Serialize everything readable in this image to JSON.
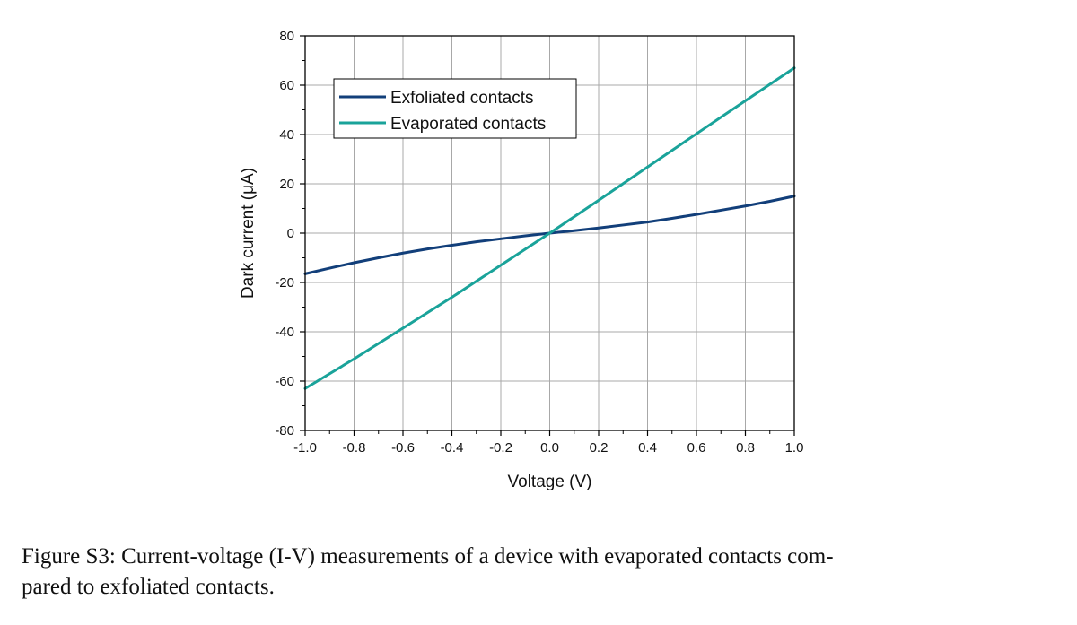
{
  "chart_data": {
    "type": "line",
    "xlabel": "Voltage (V)",
    "ylabel": "Dark current (μA)",
    "xlim": [
      -1.0,
      1.0
    ],
    "ylim": [
      -80,
      80
    ],
    "x_ticks": [
      "-1.0",
      "-0.8",
      "-0.6",
      "-0.4",
      "-0.2",
      "0.0",
      "0.2",
      "0.4",
      "0.6",
      "0.8",
      "1.0"
    ],
    "y_ticks": [
      "-80",
      "-60",
      "-40",
      "-20",
      "0",
      "20",
      "40",
      "60",
      "80"
    ],
    "grid": true,
    "legend_position": "top-left",
    "series": [
      {
        "name": "Exfoliated contacts",
        "color": "#123f7a",
        "x": [
          -1.0,
          -0.9,
          -0.8,
          -0.7,
          -0.6,
          -0.5,
          -0.4,
          -0.3,
          -0.2,
          -0.1,
          0.0,
          0.1,
          0.2,
          0.3,
          0.4,
          0.5,
          0.6,
          0.7,
          0.8,
          0.9,
          1.0
        ],
        "y": [
          -16.5,
          -14.2,
          -12.0,
          -10.0,
          -8.1,
          -6.4,
          -4.9,
          -3.5,
          -2.3,
          -1.1,
          0.0,
          1.0,
          2.1,
          3.3,
          4.5,
          6.0,
          7.6,
          9.3,
          11.0,
          12.9,
          15.0
        ]
      },
      {
        "name": "Evaporated contacts",
        "color": "#1aa39a",
        "x": [
          -1.0,
          -0.8,
          -0.6,
          -0.4,
          -0.2,
          0.0,
          0.2,
          0.4,
          0.6,
          0.8,
          1.0
        ],
        "y": [
          -63.0,
          -51.0,
          -38.5,
          -26.0,
          -13.0,
          0.0,
          13.3,
          26.8,
          40.3,
          53.7,
          67.0
        ]
      }
    ]
  },
  "caption": {
    "line1": "Figure S3: Current-voltage (I-V) measurements of a device with evaporated contacts com-",
    "line2": "pared to exfoliated contacts."
  }
}
